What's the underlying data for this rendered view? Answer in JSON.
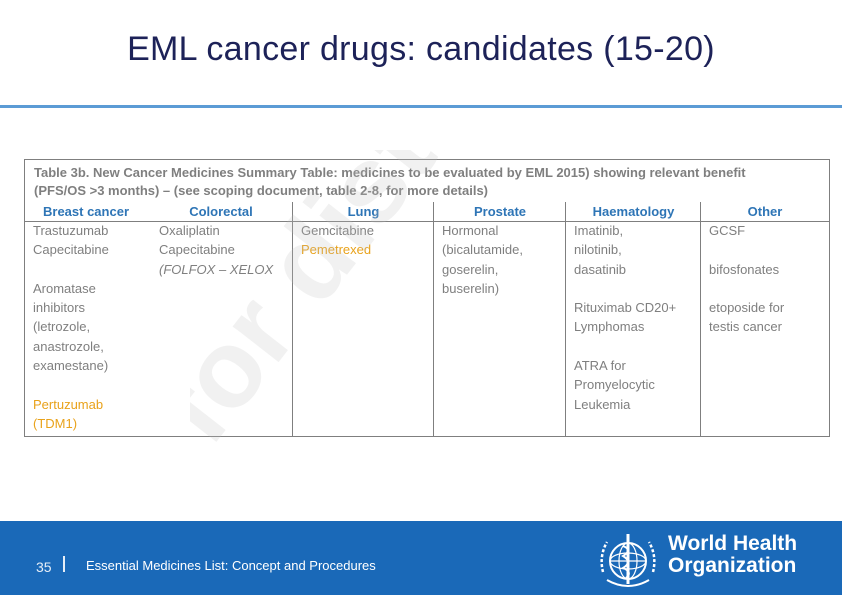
{
  "slide": {
    "title": "EML cancer drugs: candidates (15-20)"
  },
  "table": {
    "caption_line1": "Table 3b. New Cancer Medicines Summary Table: medicines to be evaluated by EML 2015) showing relevant benefit",
    "caption_line2": "(PFS/OS >3 months) – (see scoping document, table 2-8, for more details)",
    "columns": [
      {
        "header": "Breast cancer",
        "cells": [
          {
            "text": "Trastuzumab"
          },
          {
            "text": "Capecitabine"
          },
          {
            "text": ""
          },
          {
            "text": "Aromatase"
          },
          {
            "text": "inhibitors"
          },
          {
            "text": "(letrozole,"
          },
          {
            "text": "anastrozole,"
          },
          {
            "text": "examestane)"
          },
          {
            "text": ""
          },
          {
            "text": "Pertuzumab",
            "color": "orange"
          },
          {
            "text": "(TDM1)",
            "color": "orange"
          }
        ]
      },
      {
        "header": "Colorectal",
        "cells": [
          {
            "text": "Oxaliplatin"
          },
          {
            "text": "Capecitabine"
          },
          {
            "text": "(FOLFOX – XELOX",
            "italic": true
          }
        ]
      },
      {
        "header": "Lung",
        "cells": [
          {
            "text": "Gemcitabine"
          },
          {
            "text": "Pemetrexed",
            "color": "orange"
          }
        ]
      },
      {
        "header": "Prostate",
        "cells": [
          {
            "text": "Hormonal"
          },
          {
            "text": "(bicalutamide,"
          },
          {
            "text": "goserelin,"
          },
          {
            "text": "buserelin)"
          }
        ]
      },
      {
        "header": "Haematology",
        "cells": [
          {
            "text": "Imatinib,"
          },
          {
            "text": "nilotinib,"
          },
          {
            "text": "dasatinib"
          },
          {
            "text": ""
          },
          {
            "text": "Rituximab CD20+"
          },
          {
            "text": "Lymphomas"
          },
          {
            "text": ""
          },
          {
            "text": "ATRA for"
          },
          {
            "text": "Promyelocytic"
          },
          {
            "text": "Leukemia"
          }
        ]
      },
      {
        "header": "Other",
        "cells": [
          {
            "text": "GCSF"
          },
          {
            "text": ""
          },
          {
            "text": "bifosfonates"
          },
          {
            "text": ""
          },
          {
            "text": "etoposide for"
          },
          {
            "text": "testis cancer"
          }
        ]
      }
    ]
  },
  "watermark": {
    "text": "for distrib"
  },
  "footer": {
    "page_number": "35",
    "text": "Essential Medicines List: Concept and Procedures",
    "org_line1": "World Health",
    "org_line2": "Organization"
  },
  "colors": {
    "title": "#1d2258",
    "accent_rule": "#5b9bd5",
    "header_blue": "#2e75b6",
    "highlight_orange": "#e9a21a",
    "footer_bg": "#1a69b8"
  }
}
